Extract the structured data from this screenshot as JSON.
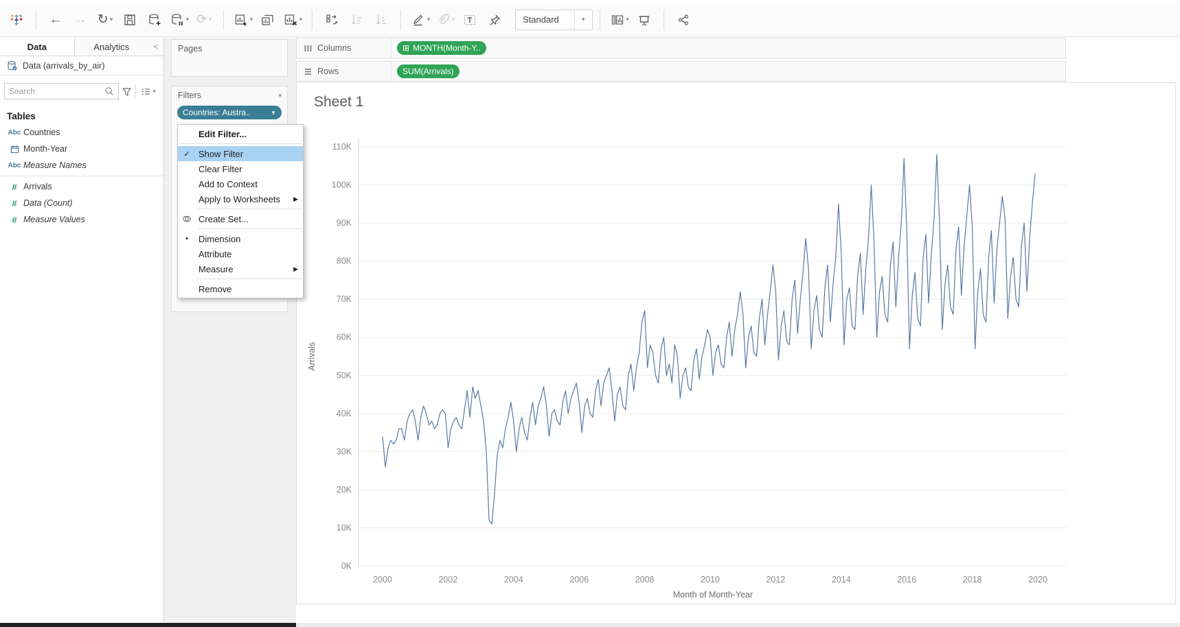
{
  "toolbar": {
    "fit_selector_value": "Standard"
  },
  "icons": {
    "dropdown_caret": "▾",
    "pill_caret": "▼",
    "submenu_arrow": "▶",
    "check": "✓",
    "radio_dot": "•",
    "collapse_chevron": "<",
    "back_arrow": "←",
    "forward_arrow": "→",
    "replay_arrow": "↻",
    "refresh_arrow": "⟳",
    "rows_glyph": "≡",
    "abc": "Abc",
    "hash": "#",
    "expand_box": "⊞"
  },
  "sidebar": {
    "tabs": [
      {
        "label": "Data"
      },
      {
        "label": "Analytics"
      }
    ],
    "datasource_label": "Data (arrivals_by_air)",
    "search_placeholder": "Search",
    "tables_header": "Tables",
    "fields": [
      {
        "label": "Countries",
        "icon": "abc-text-icon",
        "italic": false
      },
      {
        "label": "Month-Year",
        "icon": "calendar-icon",
        "italic": false
      },
      {
        "label": "Measure Names",
        "icon": "abc-text-icon",
        "italic": true
      },
      {
        "label": "Arrivals",
        "icon": "number-hash-icon",
        "italic": false
      },
      {
        "label": "Data (Count)",
        "icon": "number-hash-icon",
        "italic": true
      },
      {
        "label": "Measure Values",
        "icon": "number-hash-icon",
        "italic": true
      }
    ]
  },
  "shelves": {
    "pages_label": "Pages",
    "filters_label": "Filters",
    "filter_pill_label": "Countries: Austra..",
    "columns_label": "Columns",
    "rows_label": "Rows",
    "columns_pill_label": "MONTH(Month-Y..",
    "rows_pill_label": "SUM(Arrivals)"
  },
  "context_menu": {
    "items": [
      {
        "label": "Edit Filter..."
      },
      {
        "label": "Show Filter"
      },
      {
        "label": "Clear Filter"
      },
      {
        "label": "Add to Context"
      },
      {
        "label": "Apply to Worksheets"
      },
      {
        "label": "Create Set..."
      },
      {
        "label": "Dimension"
      },
      {
        "label": "Attribute"
      },
      {
        "label": "Measure"
      },
      {
        "label": "Remove"
      }
    ]
  },
  "sheet": {
    "title": "Sheet 1"
  },
  "chart_data": {
    "type": "line",
    "title": "Sheet 1",
    "xlabel": "Month of Month-Year",
    "ylabel": "Arrivals",
    "x_tick_years": [
      2000,
      2002,
      2004,
      2006,
      2008,
      2010,
      2012,
      2014,
      2016,
      2018,
      2020
    ],
    "y_tick_values_k": [
      0,
      10,
      20,
      30,
      40,
      50,
      60,
      70,
      80,
      90,
      100,
      110
    ],
    "ylim_k": [
      0,
      110
    ],
    "x_range_years": [
      2000,
      2020
    ],
    "grid": "horizontal-only",
    "series": [
      {
        "name": "SUM(Arrivals)",
        "start_year": 2000,
        "frequency": "monthly",
        "unit": "thousands",
        "values": [
          34,
          26,
          31,
          33,
          32,
          33,
          36,
          36,
          33,
          38,
          40,
          41,
          38,
          33,
          39,
          42,
          40,
          37,
          38,
          36,
          37,
          40,
          41,
          40,
          31,
          36,
          38,
          39,
          37,
          36,
          41,
          46,
          39,
          47,
          44,
          46,
          42,
          38,
          30,
          12,
          11,
          19,
          29,
          33,
          31,
          36,
          39,
          43,
          38,
          30,
          36,
          39,
          35,
          33,
          39,
          43,
          37,
          42,
          44,
          47,
          42,
          34,
          40,
          41,
          38,
          37,
          43,
          46,
          40,
          44,
          46,
          48,
          43,
          35,
          42,
          44,
          40,
          39,
          46,
          49,
          42,
          48,
          50,
          52,
          46,
          38,
          45,
          47,
          42,
          41,
          50,
          53,
          46,
          52,
          56,
          64,
          67,
          52,
          58,
          56,
          50,
          48,
          57,
          60,
          50,
          53,
          48,
          58,
          55,
          44,
          50,
          52,
          47,
          46,
          54,
          57,
          49,
          55,
          58,
          62,
          60,
          50,
          56,
          58,
          53,
          52,
          60,
          64,
          55,
          62,
          66,
          72,
          66,
          52,
          60,
          63,
          56,
          55,
          65,
          70,
          58,
          66,
          72,
          79,
          72,
          54,
          63,
          67,
          59,
          58,
          70,
          75,
          61,
          70,
          77,
          86,
          78,
          57,
          67,
          71,
          62,
          60,
          73,
          79,
          64,
          74,
          81,
          95,
          82,
          58,
          70,
          73,
          63,
          62,
          76,
          82,
          66,
          78,
          86,
          100,
          85,
          60,
          72,
          76,
          66,
          64,
          79,
          85,
          68,
          81,
          90,
          107,
          88,
          57,
          71,
          77,
          65,
          63,
          81,
          87,
          69,
          82,
          91,
          108,
          90,
          62,
          74,
          79,
          68,
          66,
          83,
          89,
          71,
          84,
          92,
          100,
          89,
          57,
          72,
          78,
          66,
          64,
          81,
          88,
          69,
          83,
          90,
          97,
          91,
          65,
          76,
          81,
          70,
          68,
          84,
          90,
          72,
          86,
          95,
          103
        ]
      }
    ]
  },
  "colors": {
    "line": "#5779a3",
    "dimension_pill": "#3a7d95",
    "measure_pill": "#2fa455",
    "menu_highlight": "#a9d1f2",
    "dimension_field_icon": "#4a7ba6",
    "measure_field_icon": "#2f9e7d",
    "axis_text": "#8a8a8a",
    "gridline": "#ececec"
  }
}
